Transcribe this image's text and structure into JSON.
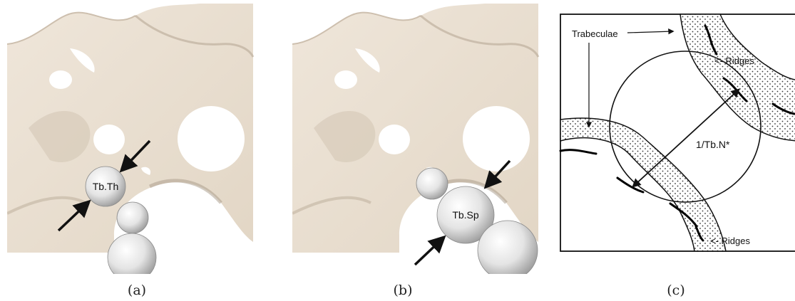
{
  "panel_a": {
    "sphere_label": "Tb.Th",
    "caption": "(a)"
  },
  "panel_b": {
    "sphere_label": "Tb.Sp",
    "caption": "(b)"
  },
  "panel_c": {
    "label_trabeculae": "Trabeculae",
    "label_ridges_top": "<- Ridges",
    "label_ridges_bottom": "<- Ridges",
    "label_diameter": "1/Tb.N*",
    "caption": "(c)"
  },
  "colors": {
    "bone": "#e7dccd",
    "bone_shadow": "#bfb19f",
    "sphere": "#e9e9e9",
    "ink": "#111111"
  }
}
